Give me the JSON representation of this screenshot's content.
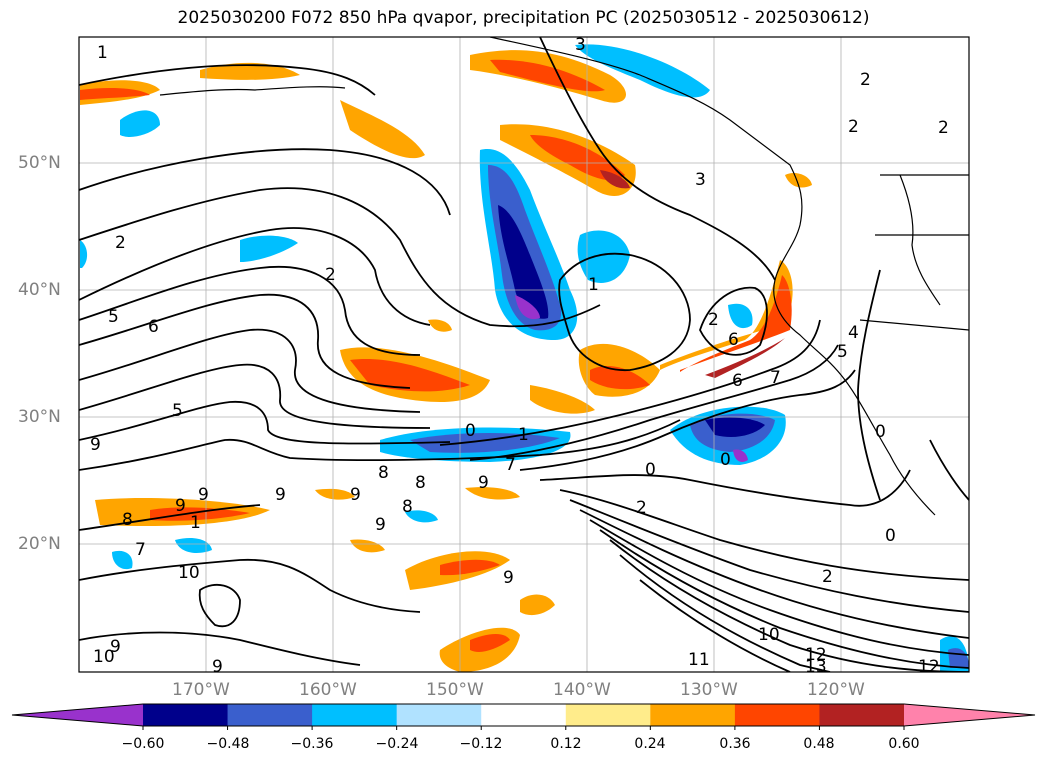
{
  "title": "2025030200 F072 850 hPa qvapor, precipitation PC (2025030512 - 2025030612)",
  "map": {
    "lat_labels": [
      "50°N",
      "40°N",
      "30°N",
      "20°N"
    ],
    "lon_labels": [
      "170°W",
      "160°W",
      "150°W",
      "140°W",
      "130°W",
      "120°W"
    ],
    "contour_labels": [
      "1",
      "3",
      "2",
      "2",
      "2",
      "3",
      "2",
      "2",
      "5",
      "6",
      "2",
      "4",
      "5",
      "6",
      "1",
      "9",
      "0",
      "1",
      "7",
      "0",
      "7",
      "6",
      "5",
      "8",
      "9",
      "9",
      "9",
      "9",
      "8",
      "9",
      "9",
      "8",
      "8",
      "7",
      "1",
      "9",
      "10",
      "9",
      "10",
      "9",
      "11",
      "10",
      "12",
      "13",
      "12",
      "2",
      "0",
      "0",
      "0",
      "2"
    ],
    "colors": {
      "water": "#ffffff",
      "contour_line": "#000000",
      "grid": "#b0b0b0",
      "axis_label": "#808080"
    }
  },
  "colorbar": {
    "ticks": [
      "−0.60",
      "−0.48",
      "−0.36",
      "−0.24",
      "−0.12",
      "0.12",
      "0.24",
      "0.36",
      "0.48",
      "0.60"
    ],
    "colors": [
      "#9932cc",
      "#00008b",
      "#3a5fcd",
      "#00bfff",
      "#b0e2ff",
      "#ffffff",
      "#ffec8b",
      "#ffa500",
      "#ff4500",
      "#b22222",
      "#ff82ab"
    ]
  }
}
